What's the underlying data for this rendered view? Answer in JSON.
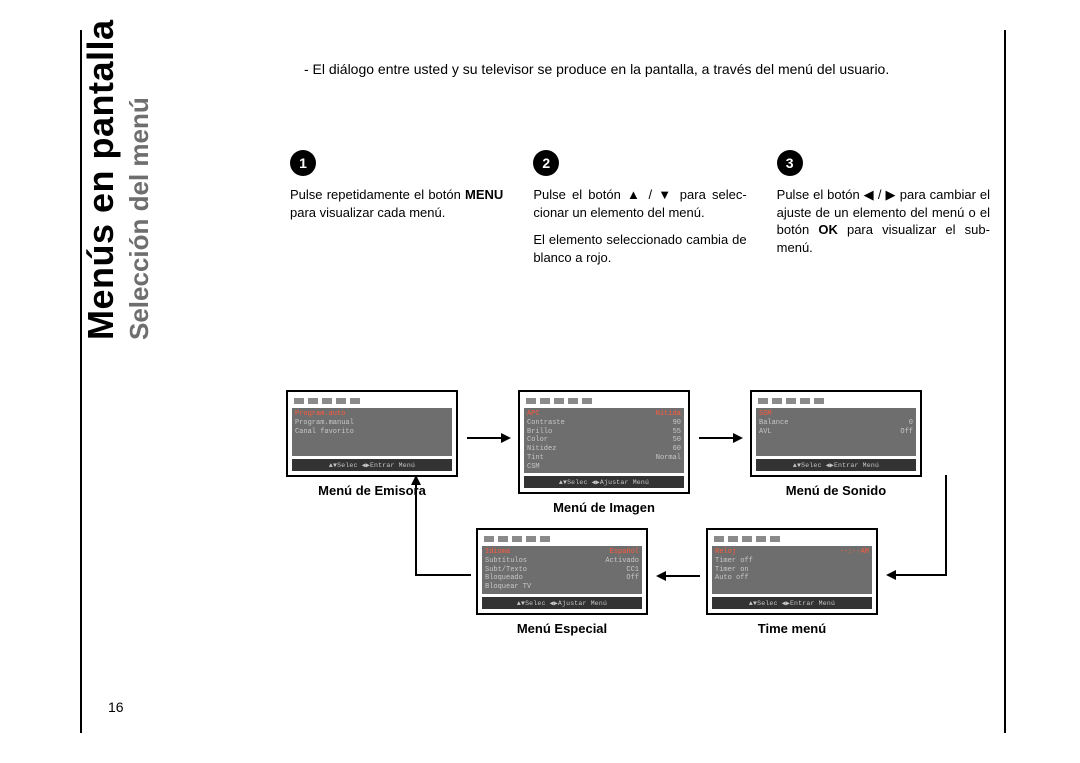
{
  "page_number": "16",
  "title": "Menús en pantalla",
  "subtitle": "Selección del menú",
  "intro_bullet": "-  El diálogo entre usted y su televisor se produce en la pantalla, a través del menú del usuario.",
  "steps": {
    "s1": {
      "badge": "1",
      "text_a": "Pulse repetidamente el botón ",
      "bold": "MENU",
      "text_b": " para visualizar cada menú."
    },
    "s2": {
      "badge": "2",
      "text_a": "Pulse el botón ▲ / ▼ para selec-cionar un elemento del menú.",
      "text_b": "El elemento seleccionado cambia de blanco a rojo."
    },
    "s3": {
      "badge": "3",
      "text_a": "Pulse el botón ◀ / ▶ para cambiar el ajuste de un elemento del menú o el botón ",
      "bold": "OK",
      "text_b": " para visualizar el sub-menú."
    }
  },
  "menus": {
    "emisora": {
      "label": "Menú de Emisora",
      "rows": [
        {
          "l": "Program.auto",
          "r": "",
          "hl": true
        },
        {
          "l": "Program.manual",
          "r": ""
        },
        {
          "l": "Canal favorito",
          "r": ""
        }
      ],
      "footer": "▲▼Selec ◀▶Entrar Menú"
    },
    "imagen": {
      "label": "Menú de Imagen",
      "rows": [
        {
          "l": "APC",
          "r": "Nítida",
          "hl": true
        },
        {
          "l": "Contraste",
          "r": "90"
        },
        {
          "l": "Brillo",
          "r": "55"
        },
        {
          "l": "Color",
          "r": "50"
        },
        {
          "l": "Nitidez",
          "r": "60"
        },
        {
          "l": "Tint",
          "r": "Normal"
        },
        {
          "l": "CSM",
          "r": ""
        }
      ],
      "footer": "▲▼Selec ◀▶Ajustar Menú"
    },
    "sonido": {
      "label": "Menú de Sonido",
      "rows": [
        {
          "l": "SSM",
          "r": "",
          "hl": true
        },
        {
          "l": "Balance",
          "r": "0"
        },
        {
          "l": "AVL",
          "r": "Off"
        }
      ],
      "footer": "▲▼Selec ◀▶Entrar Menú"
    },
    "especial": {
      "label": "Menú Especial",
      "rows": [
        {
          "l": "Idioma",
          "r": "Español",
          "hl": true
        },
        {
          "l": "Subtítulos",
          "r": "Activado"
        },
        {
          "l": "Subt/Texto",
          "r": "CC1"
        },
        {
          "l": "Bloqueado",
          "r": "Off"
        },
        {
          "l": "Bloquear TV",
          "r": ""
        }
      ],
      "footer": "▲▼Selec ◀▶Ajustar Menú"
    },
    "time": {
      "label": "Time menú",
      "rows": [
        {
          "l": "Reloj",
          "r": "--:--AM",
          "hl": true
        },
        {
          "l": "Timer off",
          "r": ""
        },
        {
          "l": "Timer on",
          "r": ""
        },
        {
          "l": "Auto off",
          "r": ""
        }
      ],
      "footer": "▲▼Selec ◀▶Entrar Menú"
    }
  },
  "colors": {
    "highlight": "#ff5a3c",
    "body_bg": "#6e6e6e",
    "body_text": "#c7c7c7",
    "subtitle": "#6e6e6e"
  }
}
